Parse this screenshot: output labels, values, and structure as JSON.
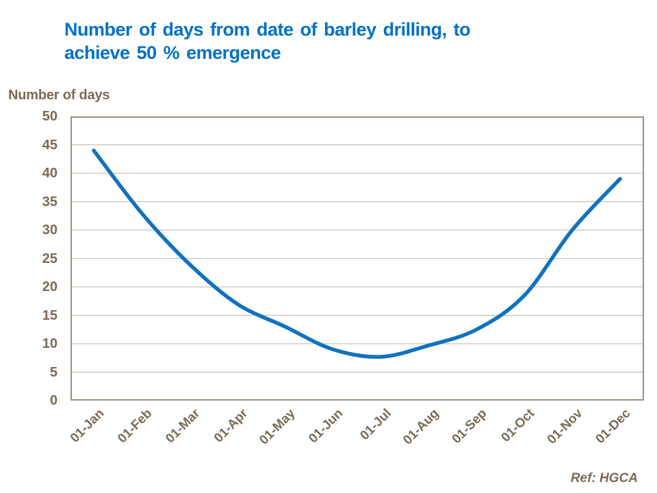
{
  "title": {
    "line1": "Number of days from date of barley drilling, to",
    "line2": "achieve 50 % emergence"
  },
  "y_axis_title": "Number of days",
  "ref_label": "Ref: HGCA",
  "colors": {
    "title_blue": "#0071c6",
    "line_blue": "#1072be",
    "text_taupe": "#7b6a57",
    "axis_border": "#9c8e7c",
    "gridline": "#c9c0b3",
    "background": "#ffffff"
  },
  "chart_data": {
    "type": "line",
    "title": "Number of days from date of barley drilling, to achieve 50 % emergence",
    "xlabel": "",
    "ylabel": "Number of days",
    "categories": [
      "01-Jan",
      "01-Feb",
      "01-Mar",
      "01-Apr",
      "01-May",
      "01-Jun",
      "01-Jul",
      "01-Aug",
      "01-Sep",
      "01-Oct",
      "01-Nov",
      "01-Dec"
    ],
    "values": [
      44,
      33,
      24,
      17,
      13,
      9,
      7.7,
      9.7,
      12.5,
      18.5,
      30,
      39
    ],
    "ylim": [
      0,
      50
    ],
    "y_ticks": [
      0,
      5,
      10,
      15,
      20,
      25,
      30,
      35,
      40,
      45,
      50
    ],
    "grid": true,
    "legend": false,
    "line_color": "#1072be",
    "annotation": "Ref: HGCA"
  }
}
